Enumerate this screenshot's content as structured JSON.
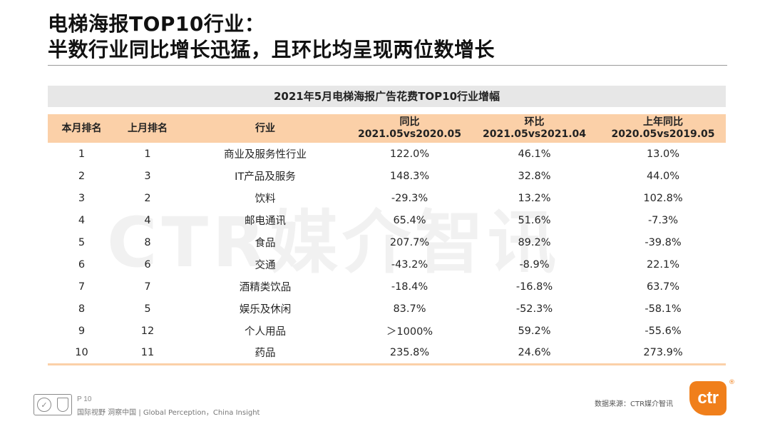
{
  "title": {
    "line1": "电梯海报TOP10行业：",
    "line2": "半数行业同比增长迅猛，且环比均呈现两位数增长"
  },
  "watermark": "CTR媒介智讯",
  "table": {
    "title": "2021年5月电梯海报广告花费TOP10行业增幅",
    "headers": {
      "rank_current": "本月排名",
      "rank_previous": "上月排名",
      "industry": "行业",
      "yoy_label": "同比",
      "yoy_period": "2021.05vs2020.05",
      "mom_label": "环比",
      "mom_period": "2021.05vs2021.04",
      "last_yoy_label": "上年同比",
      "last_yoy_period": "2020.05vs2019.05"
    },
    "rows": [
      {
        "rank": "1",
        "prev": "1",
        "industry": "商业及服务性行业",
        "yoy": "122.0%",
        "mom": "46.1%",
        "last_yoy": "13.0%"
      },
      {
        "rank": "2",
        "prev": "3",
        "industry": "IT产品及服务",
        "yoy": "148.3%",
        "mom": "32.8%",
        "last_yoy": "44.0%"
      },
      {
        "rank": "3",
        "prev": "2",
        "industry": "饮料",
        "yoy": "-29.3%",
        "mom": "13.2%",
        "last_yoy": "102.8%"
      },
      {
        "rank": "4",
        "prev": "4",
        "industry": "邮电通讯",
        "yoy": "65.4%",
        "mom": "51.6%",
        "last_yoy": "-7.3%"
      },
      {
        "rank": "5",
        "prev": "8",
        "industry": "食品",
        "yoy": "207.7%",
        "mom": "89.2%",
        "last_yoy": "-39.8%"
      },
      {
        "rank": "6",
        "prev": "6",
        "industry": "交通",
        "yoy": "-43.2%",
        "mom": "-8.9%",
        "last_yoy": "22.1%"
      },
      {
        "rank": "7",
        "prev": "7",
        "industry": "酒精类饮品",
        "yoy": "-18.4%",
        "mom": "-16.8%",
        "last_yoy": "63.7%"
      },
      {
        "rank": "8",
        "prev": "5",
        "industry": "娱乐及休闲",
        "yoy": "83.7%",
        "mom": "-52.3%",
        "last_yoy": "-58.1%"
      },
      {
        "rank": "9",
        "prev": "12",
        "industry": "个人用品",
        "yoy": "＞1000%",
        "mom": "59.2%",
        "last_yoy": "-55.6%"
      },
      {
        "rank": "10",
        "prev": "11",
        "industry": "药品",
        "yoy": "235.8%",
        "mom": "24.6%",
        "last_yoy": "273.9%"
      }
    ]
  },
  "footer": {
    "page": "P 10",
    "slogan": "国际视野  洞察中国 | Global Perception，China Insight",
    "source": "数据来源：CTR媒介智讯",
    "logo_text": "ctr",
    "registered_mark": "®"
  },
  "colors": {
    "header_fill": "#fbd0a8",
    "table_title_fill": "#e7e7e7",
    "brand_orange": "#f07f1b"
  }
}
